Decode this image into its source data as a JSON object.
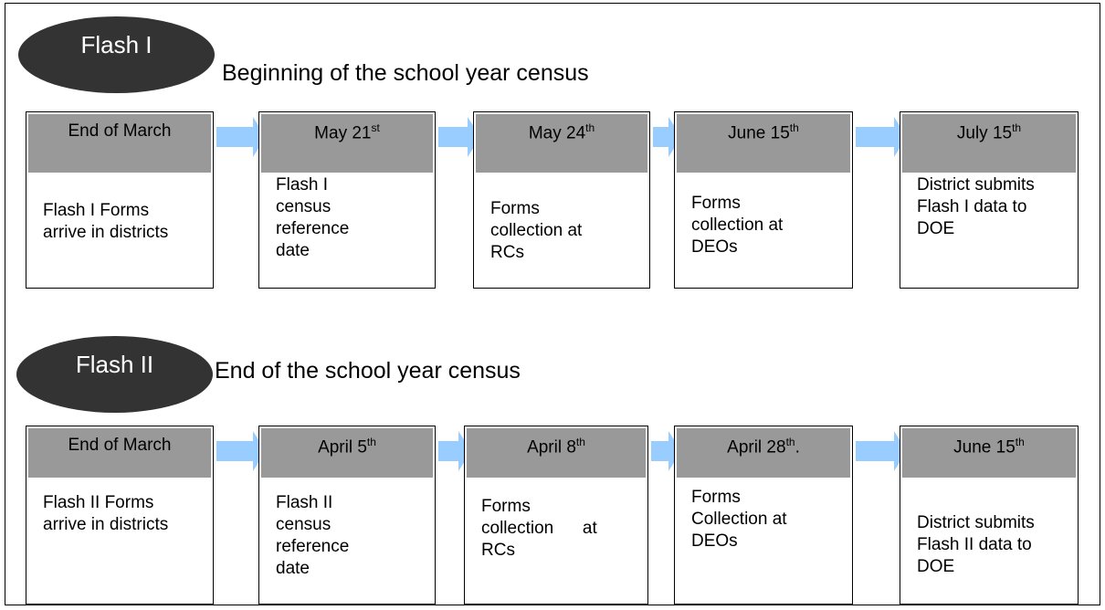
{
  "sections": [
    {
      "label": "Flash I",
      "subtitle": "Beginning of the school year census",
      "steps": [
        {
          "date": "End of March",
          "body": [
            "Flash I Forms",
            "arrive in districts"
          ]
        },
        {
          "date": "May 21",
          "sup": "st",
          "body": [
            "Flash I",
            "census",
            "reference",
            "date"
          ]
        },
        {
          "date": "May 24",
          "sup": "th",
          "body": [
            "Forms",
            "collection at",
            "RCs"
          ]
        },
        {
          "date": "June 15",
          "sup": "th",
          "body": [
            "Forms",
            "collection at",
            "DEOs"
          ]
        },
        {
          "date": "July 15",
          "sup": "th",
          "body": [
            "District submits",
            "Flash I data to",
            "DOE"
          ]
        }
      ]
    },
    {
      "label": "Flash II",
      "subtitle": "End of the school year census",
      "steps": [
        {
          "date": "End of March",
          "body": [
            "Flash II Forms",
            "arrive in districts"
          ]
        },
        {
          "date": "April 5",
          "sup": "th",
          "body": [
            "Flash II",
            "census",
            "reference",
            "date"
          ]
        },
        {
          "date": "April 8",
          "sup": "th",
          "body": [
            "Forms",
            "collection      at",
            "RCs"
          ]
        },
        {
          "date": "April 28",
          "sup": "th",
          "after": ".",
          "body": [
            "Forms",
            "Collection at",
            "DEOs"
          ]
        },
        {
          "date": "June 15",
          "sup": "th",
          "body": [
            "District submits",
            "Flash II data to",
            "DOE"
          ]
        }
      ]
    }
  ]
}
